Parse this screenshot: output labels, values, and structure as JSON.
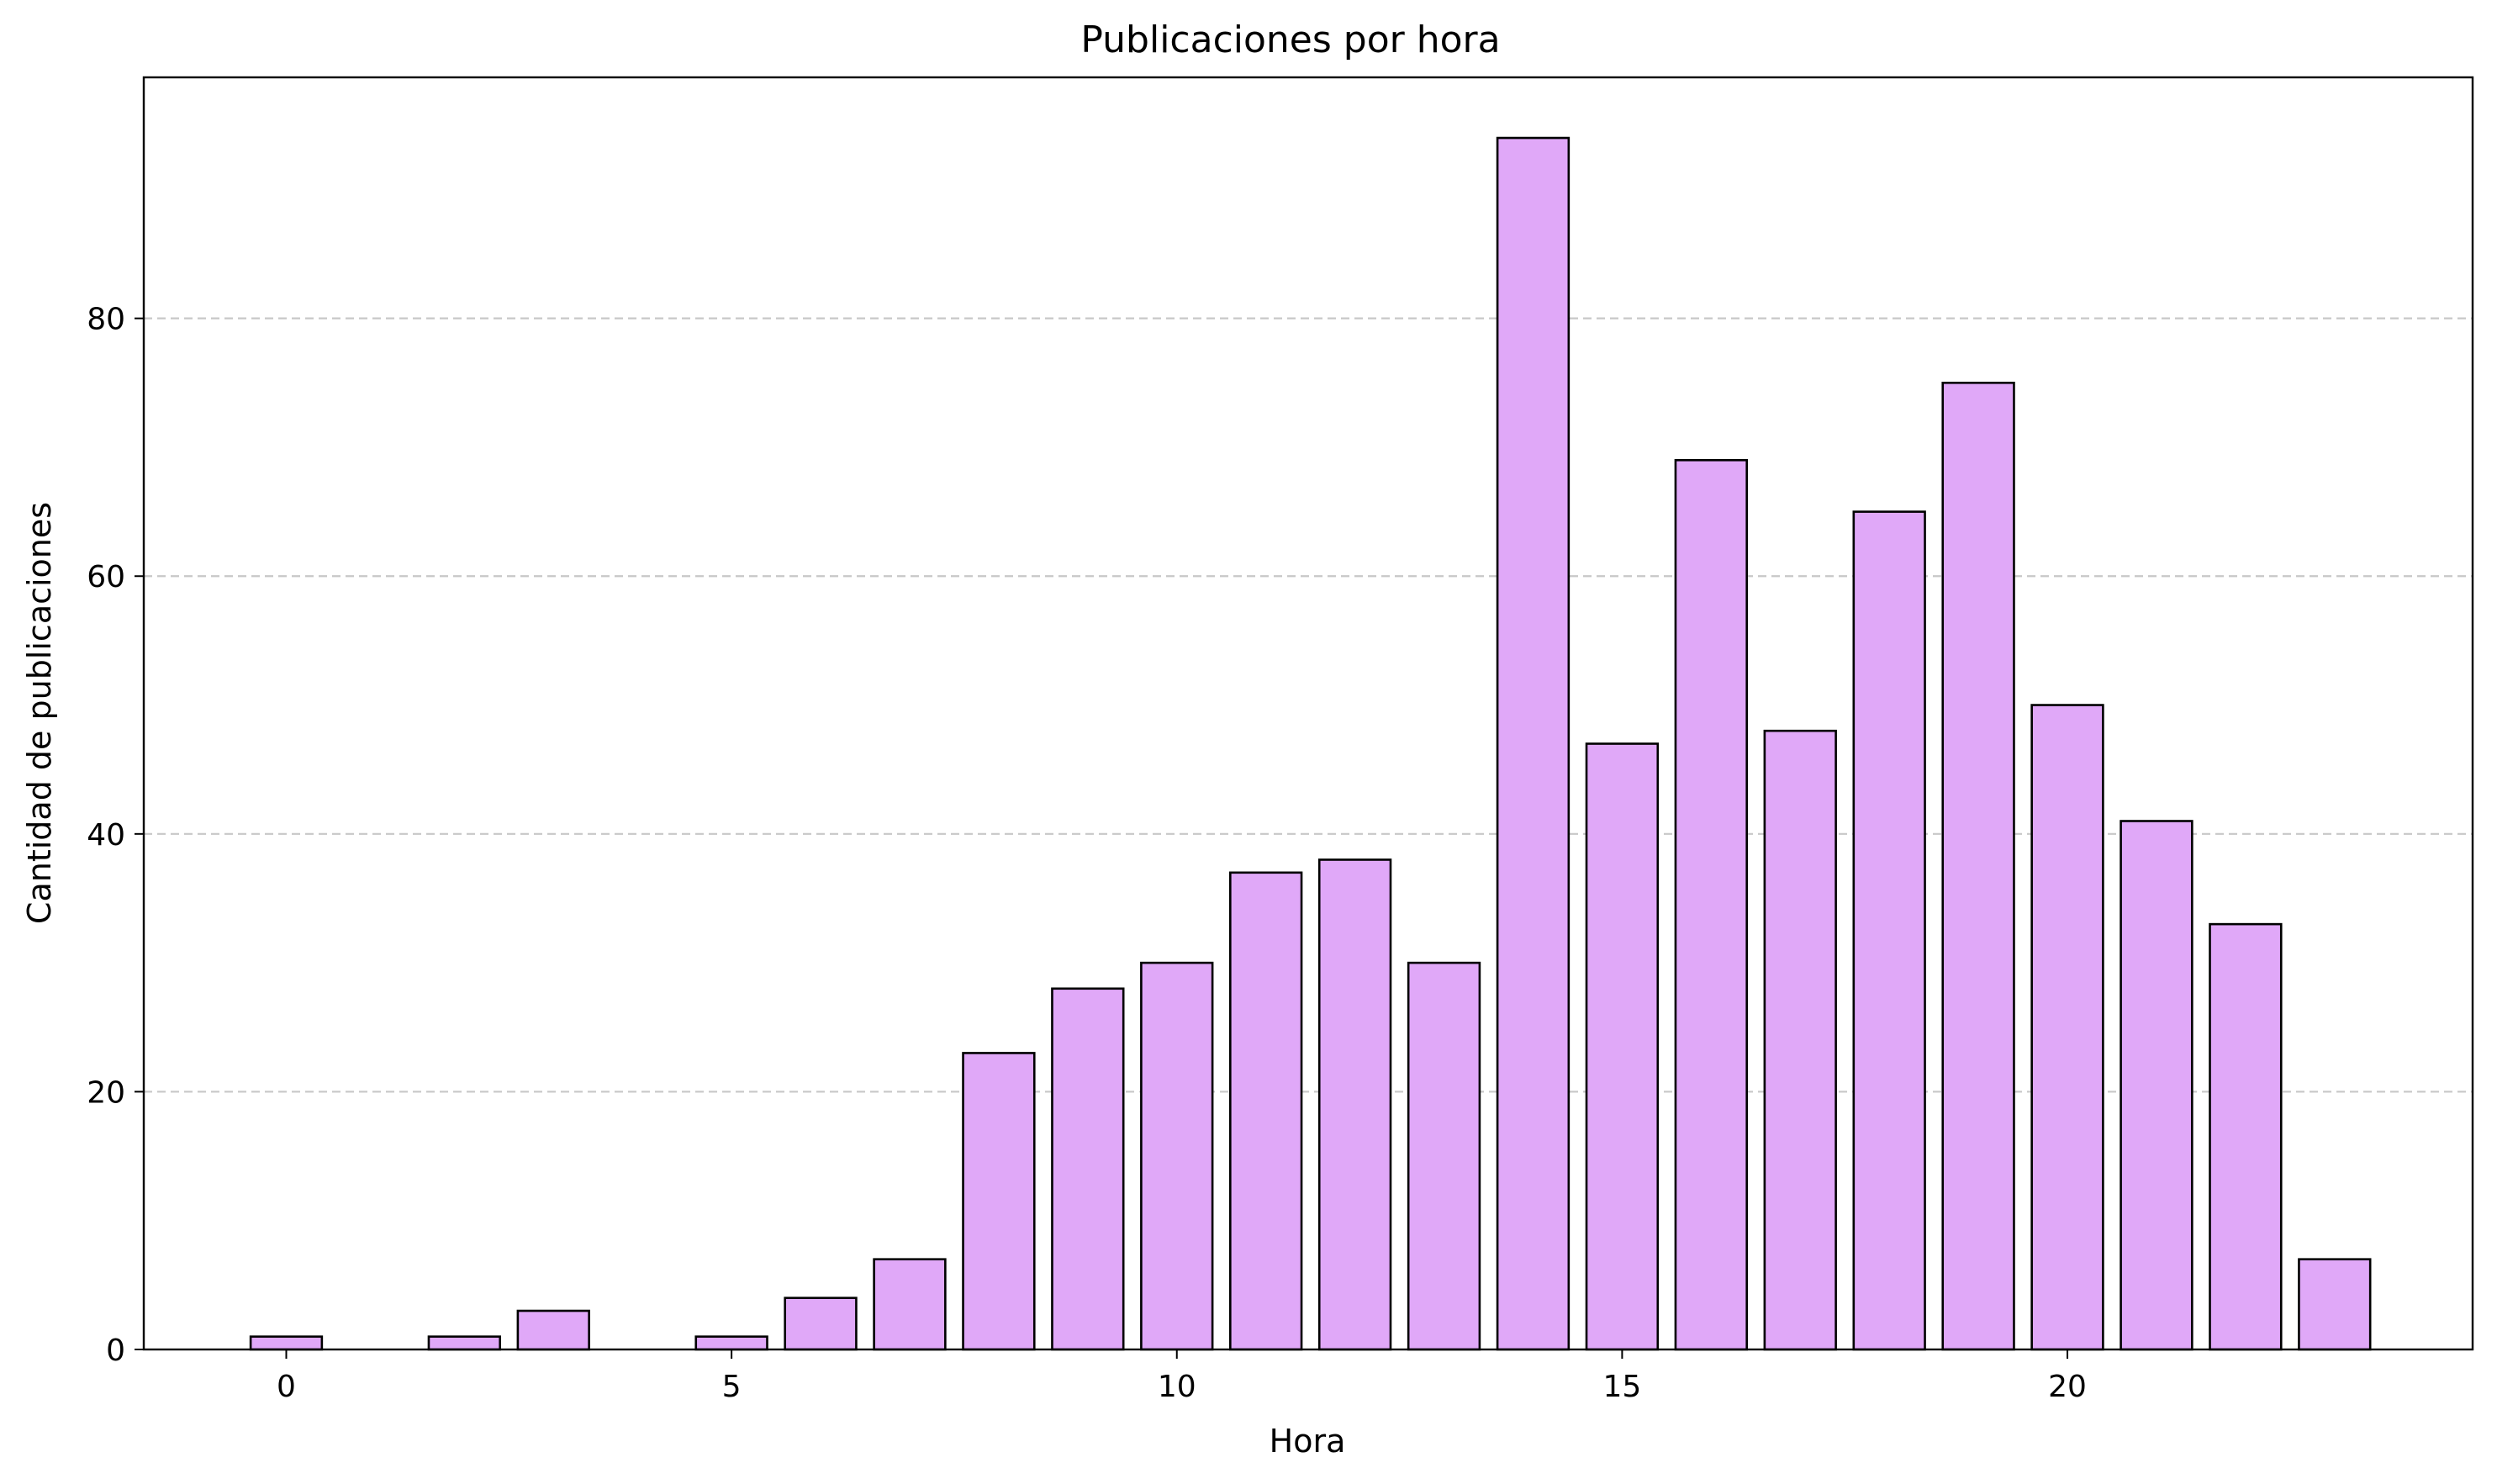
{
  "chart_data": {
    "type": "bar",
    "title": "Publicaciones por hora",
    "xlabel": "Hora",
    "ylabel": "Cantidad de publicaciones",
    "x": [
      0,
      2,
      3,
      5,
      6,
      7,
      8,
      9,
      10,
      11,
      12,
      13,
      14,
      15,
      16,
      17,
      18,
      19,
      20,
      21,
      22,
      23
    ],
    "values": [
      1,
      1,
      3,
      1,
      4,
      7,
      23,
      28,
      30,
      37,
      38,
      30,
      94,
      47,
      69,
      48,
      65,
      75,
      50,
      41,
      33,
      7
    ],
    "xticks": [
      "0",
      "5",
      "10",
      "15",
      "20"
    ],
    "yticks": [
      "0",
      "20",
      "40",
      "60",
      "80"
    ],
    "xlim": [
      -1.6,
      24.55
    ],
    "ylim": [
      0,
      98.7
    ],
    "grid": "y dashed",
    "bar_color": "#e0a8f8",
    "edge_color": "#000000"
  }
}
